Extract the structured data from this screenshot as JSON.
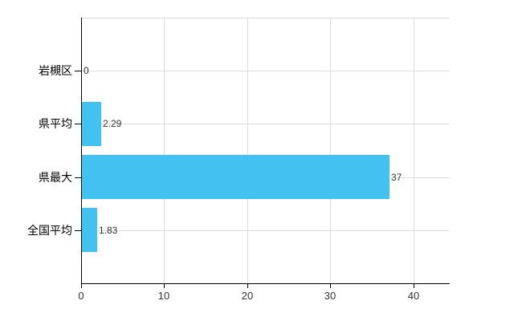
{
  "chart_data": {
    "type": "bar",
    "orientation": "horizontal",
    "title": "",
    "xlabel": "",
    "ylabel": "",
    "categories": [
      "岩槻区",
      "県平均",
      "県最大",
      "全国平均"
    ],
    "values": [
      0,
      2.29,
      37,
      1.83
    ],
    "value_labels": [
      "0",
      "2.29",
      "37",
      "1.83"
    ],
    "xlim": [
      0,
      44.4
    ],
    "x_ticks": [
      0,
      10,
      20,
      30,
      40
    ],
    "x_tick_labels": [
      "0",
      "10",
      "20",
      "30",
      "40"
    ],
    "grid": true,
    "legend": false,
    "bar_color": "#41C2F0",
    "grid_color": "#DCDCDC",
    "axis_color": "#000000",
    "category_label_color": "#000000",
    "value_label_color": "#333333",
    "tick_label_color": "#333333",
    "background_color": "#FFFFFF"
  }
}
